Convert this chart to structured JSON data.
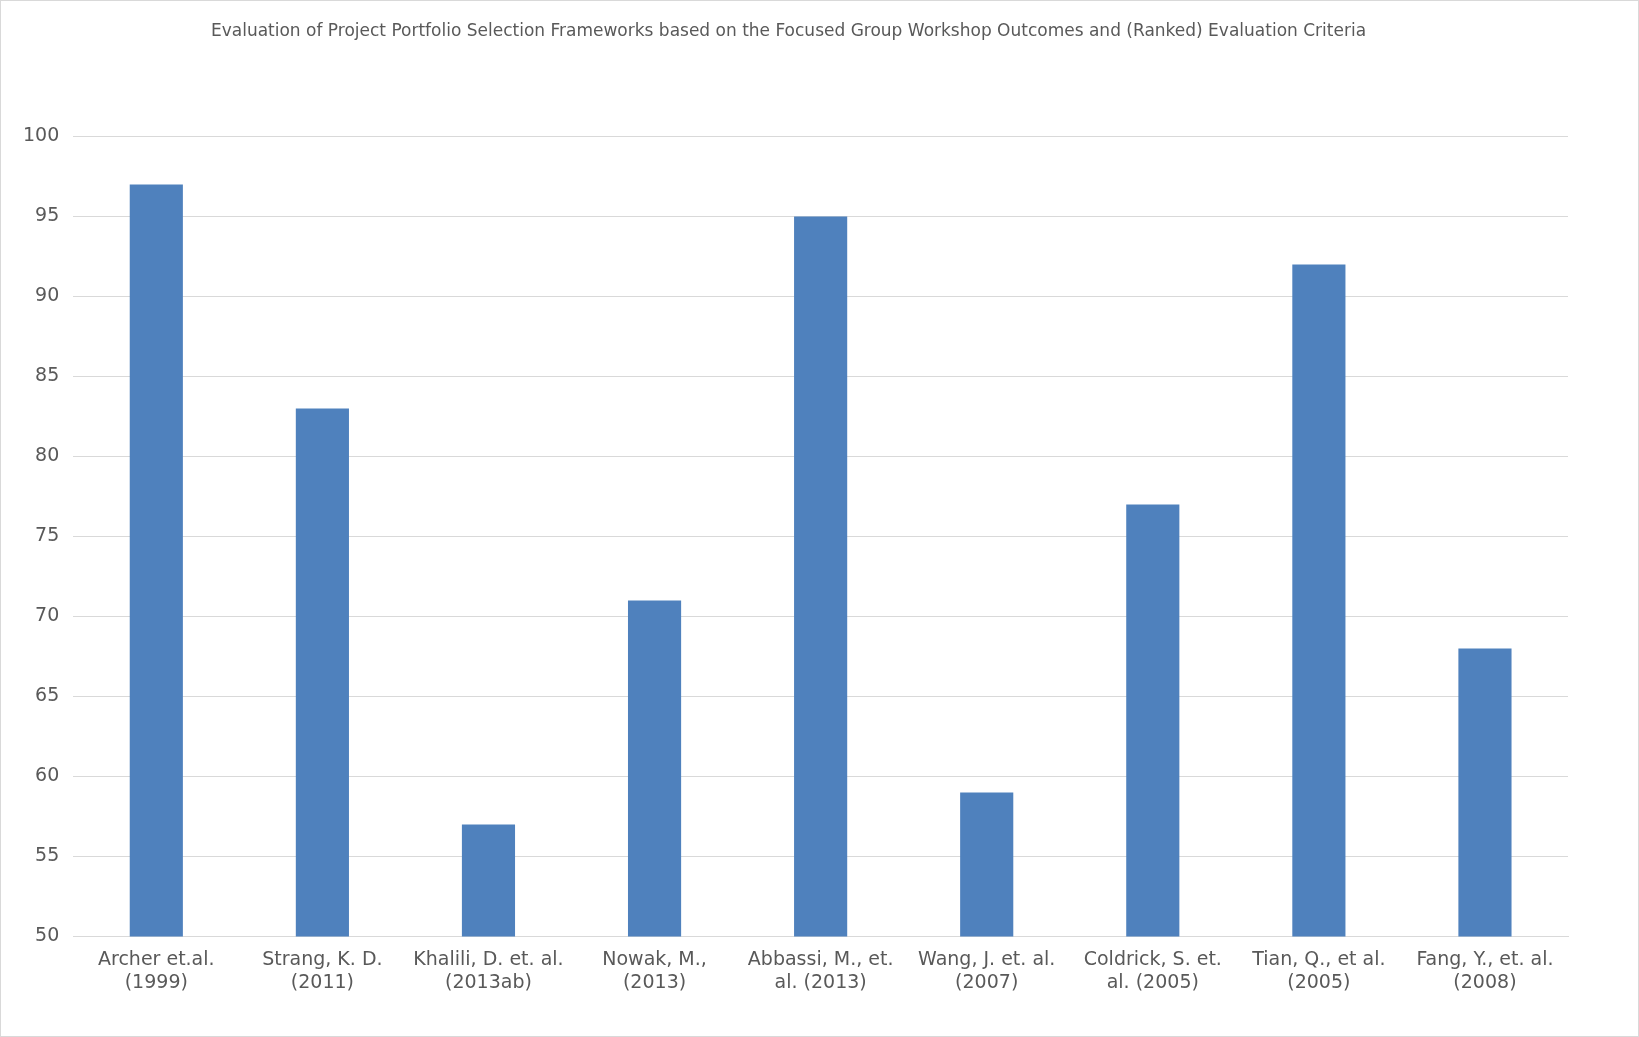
{
  "chart_data": {
    "type": "bar",
    "title": "Evaluation of Project Portfolio Selection Frameworks based on the Focused Group Workshop Outcomes and (Ranked) Evaluation Criteria",
    "categories": [
      "Archer et.al. (1999)",
      "Strang, K. D. (2011)",
      "Khalili, D. et. al. (2013ab)",
      "Nowak, M., (2013)",
      "Abbassi, M., et. al. (2013)",
      "Wang, J. et. al. (2007)",
      "Coldrick, S. et. al. (2005)",
      "Tian, Q., et al. (2005)",
      "Fang, Y., et. al. (2008)"
    ],
    "values": [
      97,
      83,
      57,
      71,
      95,
      59,
      77,
      92,
      68
    ],
    "color": "#4f81bd",
    "ylim": [
      50,
      100
    ],
    "yticks": [
      50,
      55,
      60,
      65,
      70,
      75,
      80,
      85,
      90,
      95,
      100
    ],
    "grid": "y"
  }
}
